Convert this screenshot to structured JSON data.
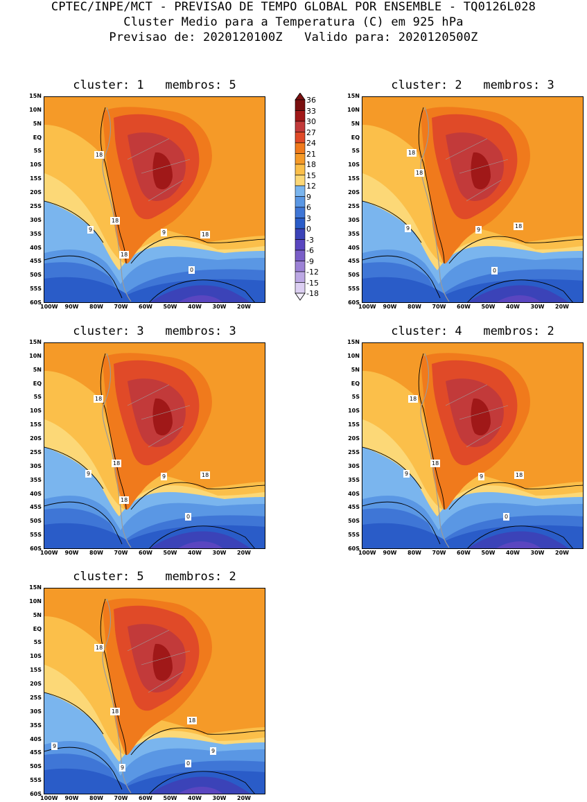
{
  "header": {
    "line1": "CPTEC/INPE/MCT - PREVISAO DE TEMPO GLOBAL POR ENSEMBLE - TQ0126L028",
    "line2": "Cluster Medio para a Temperatura (C) em 925 hPa",
    "line3": "Previsao de: 2020120100Z   Valido para: 2020120500Z"
  },
  "axes": {
    "lat_labels": [
      "15N",
      "10N",
      "5N",
      "EQ",
      "5S",
      "10S",
      "15S",
      "20S",
      "25S",
      "30S",
      "35S",
      "40S",
      "45S",
      "50S",
      "55S",
      "60S"
    ],
    "lon_labels": [
      "100W",
      "90W",
      "80W",
      "70W",
      "60W",
      "50W",
      "40W",
      "30W",
      "20W"
    ]
  },
  "legend": {
    "labels": [
      "36",
      "33",
      "30",
      "27",
      "24",
      "21",
      "18",
      "15",
      "12",
      "9",
      "6",
      "3",
      "0",
      "-3",
      "-6",
      "-9",
      "-12",
      "-15",
      "-18"
    ],
    "colors": [
      "#7a1010",
      "#a01818",
      "#c23a3a",
      "#e04a28",
      "#f07a1c",
      "#f59a28",
      "#fbbf4a",
      "#fcd877",
      "#7ab5ee",
      "#5a97e4",
      "#3f76d6",
      "#2a5cc8",
      "#3b43b8",
      "#5a46c0",
      "#7a5ec8",
      "#9c82d6",
      "#bca8e4",
      "#dccff2"
    ]
  },
  "clusters": [
    {
      "title": "cluster: 1   membros: 5",
      "labels": [
        "18",
        "18",
        "9",
        "9",
        "18",
        "18",
        "0"
      ]
    },
    {
      "title": "cluster: 2   membros: 3",
      "labels": [
        "18",
        "18",
        "9",
        "9",
        "18",
        "0"
      ]
    },
    {
      "title": "cluster: 3   membros: 3",
      "labels": [
        "18",
        "18",
        "9",
        "9",
        "18",
        "18",
        "0"
      ]
    },
    {
      "title": "cluster: 4   membros: 2",
      "labels": [
        "18",
        "18",
        "9",
        "9",
        "18",
        "0"
      ]
    },
    {
      "title": "cluster: 5   membros: 2",
      "labels": [
        "18",
        "18",
        "18",
        "9",
        "9",
        "9",
        "0"
      ]
    }
  ]
}
